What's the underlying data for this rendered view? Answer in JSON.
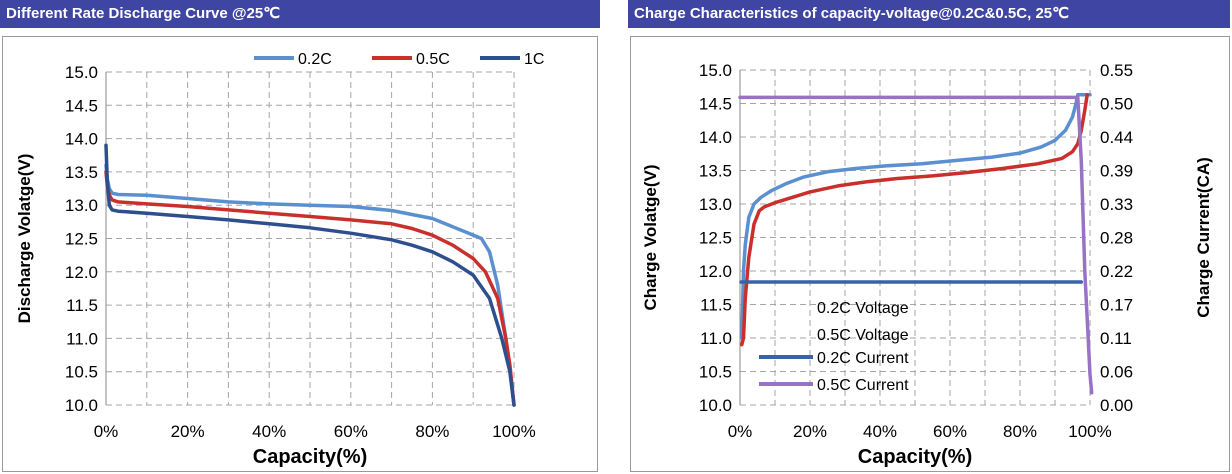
{
  "left_title": "Different Rate Discharge Curve @25℃",
  "right_title": "Charge  Characteristics of capacity-voltage@0.2C&0.5C, 25℃",
  "colors": {
    "title_bar": "#3f45a3",
    "c02": "#5a8fd0",
    "c05": "#c9302c",
    "c1": "#2e4f8f",
    "cur02": "#3a62a8",
    "cur05": "#9872c4",
    "grid": "#a6a6a6"
  },
  "chart_data": [
    {
      "type": "line",
      "title": "Different Rate Discharge Curve @25℃",
      "xlabel": "Capacity(%)",
      "ylabel": "Discharge Volatge(V)",
      "xlim": [
        0,
        100
      ],
      "ylim": [
        10.0,
        15.0
      ],
      "xticks": [
        "0%",
        "20%",
        "40%",
        "60%",
        "80%",
        "100%"
      ],
      "yticks": [
        "10.0",
        "10.5",
        "11.0",
        "11.5",
        "12.0",
        "12.5",
        "13.0",
        "13.5",
        "14.0",
        "14.5",
        "15.0"
      ],
      "grid": true,
      "legend_position": "top",
      "series": [
        {
          "name": "0.2C",
          "color_key": "c02",
          "x": [
            0,
            0.3,
            0.8,
            1.5,
            3,
            10,
            20,
            30,
            40,
            50,
            60,
            70,
            80,
            88,
            92,
            94,
            96,
            98,
            99,
            100
          ],
          "y": [
            13.6,
            13.4,
            13.25,
            13.18,
            13.16,
            13.15,
            13.1,
            13.05,
            13.02,
            13.0,
            12.98,
            12.92,
            12.8,
            12.6,
            12.5,
            12.3,
            11.8,
            11.0,
            10.5,
            10.0
          ]
        },
        {
          "name": "0.5C",
          "color_key": "c05",
          "x": [
            0,
            0.3,
            0.8,
            1.5,
            3,
            10,
            20,
            30,
            40,
            50,
            60,
            70,
            75,
            80,
            85,
            90,
            93,
            96,
            98,
            99,
            100
          ],
          "y": [
            13.5,
            13.3,
            13.15,
            13.08,
            13.05,
            13.02,
            12.98,
            12.93,
            12.88,
            12.83,
            12.78,
            12.72,
            12.65,
            12.55,
            12.4,
            12.2,
            12.0,
            11.6,
            11.0,
            10.6,
            10.0
          ]
        },
        {
          "name": "1C",
          "color_key": "c1",
          "x": [
            0,
            0.3,
            0.8,
            1.5,
            3,
            10,
            20,
            30,
            40,
            50,
            60,
            70,
            75,
            80,
            85,
            90,
            94,
            97,
            99,
            100
          ],
          "y": [
            13.9,
            13.4,
            13.0,
            12.93,
            12.91,
            12.88,
            12.83,
            12.78,
            12.72,
            12.66,
            12.58,
            12.48,
            12.4,
            12.3,
            12.15,
            11.95,
            11.6,
            11.0,
            10.5,
            10.0
          ]
        }
      ]
    },
    {
      "type": "line",
      "title": "Charge  Characteristics of capacity-voltage@0.2C&0.5C, 25℃",
      "xlabel": "Capacity(%)",
      "ylabel": "Charge Volatge(V)",
      "y2label": "Charge Current(CA)",
      "xlim": [
        0,
        100
      ],
      "ylim": [
        10.0,
        15.0
      ],
      "y2lim": [
        0.0,
        0.55
      ],
      "xticks": [
        "0%",
        "20%",
        "40%",
        "60%",
        "80%",
        "100%"
      ],
      "yticks": [
        "10.0",
        "10.5",
        "11.0",
        "11.5",
        "12.0",
        "12.5",
        "13.0",
        "13.5",
        "14.0",
        "14.5",
        "15.0"
      ],
      "y2ticks": [
        "0.00",
        "0.06",
        "0.11",
        "0.17",
        "0.22",
        "0.28",
        "0.33",
        "0.39",
        "0.44",
        "0.50",
        "0.55"
      ],
      "grid": true,
      "legend_position": "bottom-center",
      "series": [
        {
          "name": "0.2C Voltage",
          "color_key": "c02",
          "axis": "left",
          "x": [
            0.5,
            1,
            1.5,
            2.5,
            4,
            6,
            9,
            13,
            18,
            25,
            33,
            42,
            52,
            62,
            72,
            80,
            86,
            90,
            93,
            95,
            96,
            96.5,
            97,
            98,
            100
          ],
          "y": [
            11.0,
            12.0,
            12.4,
            12.8,
            13.0,
            13.1,
            13.2,
            13.3,
            13.4,
            13.48,
            13.53,
            13.57,
            13.6,
            13.65,
            13.7,
            13.76,
            13.85,
            13.95,
            14.1,
            14.3,
            14.5,
            14.63,
            14.63,
            14.63,
            14.63
          ]
        },
        {
          "name": "0.5C Voltage",
          "color_key": "c05",
          "axis": "left",
          "x": [
            0.5,
            1,
            1.5,
            2.5,
            4,
            5.5,
            7,
            10,
            15,
            20,
            28,
            36,
            45,
            55,
            65,
            75,
            85,
            92,
            95,
            96.5,
            97.5,
            98.5,
            99.2
          ],
          "y": [
            10.9,
            11.0,
            11.6,
            12.2,
            12.7,
            12.9,
            12.96,
            13.02,
            13.1,
            13.18,
            13.27,
            13.33,
            13.38,
            13.42,
            13.47,
            13.53,
            13.6,
            13.68,
            13.78,
            13.9,
            14.1,
            14.4,
            14.63
          ]
        },
        {
          "name": "0.2C Current",
          "color_key": "cur02",
          "axis": "right",
          "x": [
            0.3,
            97.5
          ],
          "y": [
            0.202,
            0.202
          ]
        },
        {
          "name": "0.5C Current",
          "color_key": "cur05",
          "axis": "right",
          "x": [
            0,
            96.5,
            97.5,
            98.5,
            100,
            100.5
          ],
          "y": [
            0.505,
            0.505,
            0.4,
            0.22,
            0.05,
            0.02
          ]
        }
      ]
    }
  ]
}
